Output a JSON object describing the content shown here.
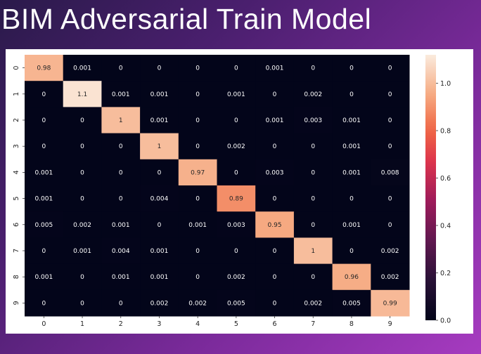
{
  "slide": {
    "title": "BIM Adversarial Train Model"
  },
  "chart_data": {
    "type": "heatmap",
    "title": "",
    "xlabel": "",
    "ylabel": "",
    "x_labels": [
      "0",
      "1",
      "2",
      "3",
      "4",
      "5",
      "6",
      "7",
      "8",
      "9"
    ],
    "y_labels": [
      "0",
      "1",
      "2",
      "3",
      "4",
      "5",
      "6",
      "7",
      "8",
      "9"
    ],
    "values": [
      [
        0.98,
        0.001,
        0,
        0,
        0,
        0,
        0.001,
        0,
        0,
        0
      ],
      [
        0,
        1.1,
        0.001,
        0.001,
        0,
        0.001,
        0,
        0.002,
        0,
        0
      ],
      [
        0,
        0,
        1,
        0.001,
        0,
        0,
        0.001,
        0.003,
        0.001,
        0
      ],
      [
        0,
        0,
        0,
        1,
        0,
        0.002,
        0,
        0,
        0.001,
        0
      ],
      [
        0.001,
        0,
        0,
        0,
        0.97,
        0,
        0.003,
        0,
        0.001,
        0.008
      ],
      [
        0.001,
        0,
        0,
        0.004,
        0,
        0.89,
        0,
        0,
        0,
        0
      ],
      [
        0.005,
        0.002,
        0.001,
        0,
        0.001,
        0.003,
        0.95,
        0,
        0.001,
        0
      ],
      [
        0,
        0.001,
        0.004,
        0.001,
        0,
        0,
        0,
        1,
        0,
        0.002
      ],
      [
        0.001,
        0,
        0.001,
        0.001,
        0,
        0.002,
        0,
        0,
        0.96,
        0.002
      ],
      [
        0,
        0,
        0,
        0.002,
        0.002,
        0.005,
        0,
        0.002,
        0.005,
        0.99
      ]
    ],
    "colorbar": {
      "range": [
        0,
        1.12
      ],
      "ticks": [
        0.0,
        0.2,
        0.4,
        0.6,
        0.8,
        1.0
      ],
      "tick_labels": [
        "0.0",
        "0.2",
        "0.4",
        "0.6",
        "0.8",
        "1.0"
      ],
      "colormap": "rocket"
    },
    "colors": {
      "low": "#03051a",
      "high": "#faebdd"
    }
  }
}
